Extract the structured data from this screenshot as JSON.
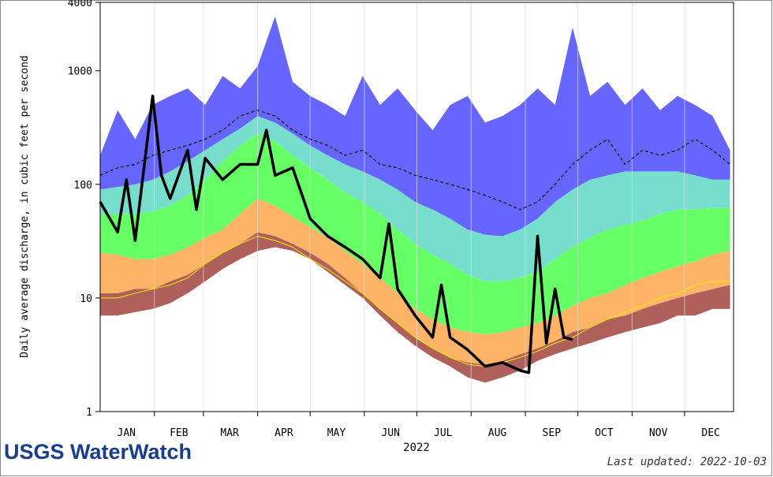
{
  "chart_data": {
    "type": "hydrograph",
    "ylabel": "Daily average discharge, in cubic feet per second",
    "xlabel": "2022",
    "footer_logo": "USGS WaterWatch",
    "footer_updated": "Last updated: 2022-10-03",
    "log_scale": true,
    "ylim": [
      1,
      4000
    ],
    "yticks": [
      1,
      10,
      100,
      1000,
      4000
    ],
    "xlim": [
      1,
      363
    ],
    "xgrid": [
      32,
      60,
      91,
      121,
      152,
      182,
      213,
      244,
      274,
      305,
      335
    ],
    "xticks": [
      {
        "value": 16,
        "label": "JAN"
      },
      {
        "value": 46,
        "label": "FEB"
      },
      {
        "value": 75,
        "label": "MAR"
      },
      {
        "value": 106,
        "label": "APR"
      },
      {
        "value": 136,
        "label": "MAY"
      },
      {
        "value": 167,
        "label": "JUN"
      },
      {
        "value": 197,
        "label": "JUL"
      },
      {
        "value": 228,
        "label": "AUG"
      },
      {
        "value": 259,
        "label": "SEP"
      },
      {
        "value": 289,
        "label": "OCT"
      },
      {
        "value": 320,
        "label": "NOV"
      },
      {
        "value": 350,
        "label": "DEC"
      }
    ],
    "x": [
      1,
      11,
      21,
      31,
      41,
      51,
      61,
      71,
      81,
      91,
      101,
      111,
      121,
      131,
      141,
      151,
      161,
      171,
      181,
      191,
      201,
      211,
      221,
      231,
      241,
      251,
      261,
      271,
      281,
      291,
      301,
      311,
      321,
      331,
      341,
      351,
      361
    ],
    "bands": [
      {
        "values": [
          7,
          7,
          7.5,
          8,
          9,
          11,
          14,
          18,
          22,
          26,
          28,
          26,
          22,
          17,
          13,
          10,
          7,
          5,
          3.8,
          3,
          2.5,
          2,
          1.8,
          2,
          2.3,
          2.8,
          3.2,
          3.6,
          4,
          4.5,
          5,
          5.5,
          6,
          7,
          7,
          8,
          8
        ]
      },
      {
        "color": "#b0605a",
        "values": [
          11,
          11,
          12,
          12,
          14,
          16,
          20,
          25,
          30,
          38,
          35,
          30,
          25,
          20,
          15,
          11,
          8,
          6,
          4.5,
          3.6,
          3,
          2.7,
          2.6,
          2.8,
          3.2,
          3.6,
          4.2,
          5,
          5.5,
          6.5,
          7,
          8,
          9,
          10,
          11,
          12,
          13
        ]
      },
      {
        "color": "#ffb366",
        "values": [
          25,
          24,
          22,
          22,
          24,
          28,
          34,
          40,
          55,
          75,
          65,
          52,
          42,
          34,
          26,
          20,
          15,
          11,
          8,
          6.5,
          5.5,
          5,
          4.8,
          5,
          5.5,
          6,
          7,
          8.5,
          10,
          11,
          13,
          15,
          17,
          19,
          21,
          24,
          26
        ]
      },
      {
        "color": "#66ff66",
        "values": [
          55,
          55,
          55,
          58,
          65,
          80,
          110,
          160,
          220,
          280,
          240,
          180,
          140,
          110,
          85,
          70,
          55,
          40,
          30,
          24,
          20,
          16,
          14,
          14,
          15,
          17,
          22,
          28,
          34,
          40,
          44,
          48,
          55,
          60,
          60,
          62,
          62
        ]
      },
      {
        "color": "#77ddcc",
        "values": [
          90,
          95,
          100,
          110,
          130,
          160,
          200,
          250,
          310,
          400,
          350,
          280,
          220,
          180,
          150,
          130,
          110,
          90,
          70,
          60,
          50,
          40,
          36,
          35,
          40,
          50,
          70,
          90,
          110,
          120,
          130,
          130,
          130,
          130,
          120,
          110,
          110
        ]
      },
      {
        "color": "#6666ff",
        "values": [
          180,
          450,
          250,
          500,
          600,
          700,
          500,
          900,
          700,
          1100,
          3000,
          800,
          600,
          500,
          400,
          900,
          500,
          700,
          450,
          300,
          500,
          600,
          350,
          400,
          500,
          700,
          500,
          2400,
          600,
          800,
          500,
          700,
          450,
          600,
          500,
          400,
          200
        ]
      }
    ],
    "series": [
      {
        "color": "#ffee00",
        "width": 1,
        "values": [
          10,
          10,
          11,
          12,
          13,
          15,
          20,
          25,
          30,
          35,
          32,
          28,
          22,
          18,
          14,
          11,
          8,
          6,
          4.5,
          3.6,
          3,
          2.6,
          2.5,
          2.7,
          3,
          3.4,
          4,
          4.5,
          5.5,
          6.5,
          7.5,
          8.5,
          10,
          11,
          13,
          14,
          14
        ]
      },
      {
        "color": "#000000",
        "width": 1.2,
        "dashed": true,
        "values": [
          120,
          140,
          150,
          180,
          200,
          220,
          250,
          300,
          400,
          450,
          400,
          300,
          250,
          220,
          180,
          200,
          150,
          140,
          120,
          110,
          100,
          90,
          80,
          70,
          60,
          70,
          100,
          150,
          200,
          250,
          150,
          200,
          180,
          200,
          250,
          200,
          150
        ]
      },
      {
        "color": "#000000",
        "width": 3.5,
        "x": [
          1,
          11,
          16,
          21,
          31,
          36,
          41,
          51,
          56,
          61,
          71,
          81,
          91,
          96,
          101,
          111,
          121,
          131,
          141,
          151,
          161,
          166,
          171,
          181,
          191,
          196,
          201,
          211,
          221,
          231,
          241,
          246,
          251,
          256,
          261,
          266,
          271
        ],
        "values": [
          70,
          38,
          110,
          32,
          600,
          120,
          75,
          200,
          60,
          170,
          110,
          150,
          150,
          300,
          120,
          140,
          50,
          35,
          28,
          22,
          15,
          45,
          12,
          7,
          4.5,
          13,
          4.5,
          3.5,
          2.5,
          2.7,
          2.3,
          2.2,
          35,
          4,
          12,
          4.5,
          4.3
        ]
      }
    ]
  }
}
